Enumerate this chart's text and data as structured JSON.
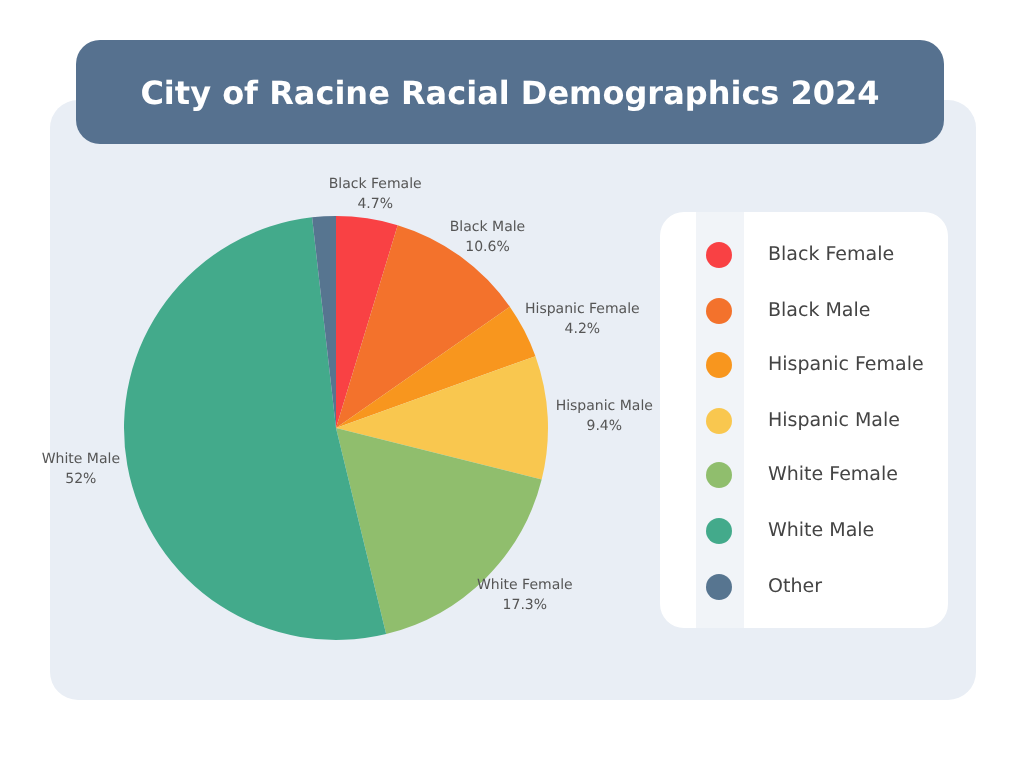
{
  "chart_data": {
    "type": "pie",
    "title": "City of Racine Racial Demographics 2024",
    "categories": [
      "Black Female",
      "Black Male",
      "Hispanic Female",
      "Hispanic Male",
      "White Female",
      "White Male",
      "Other"
    ],
    "values": [
      4.7,
      10.6,
      4.2,
      9.4,
      17.3,
      52,
      1.8
    ],
    "value_labels": [
      "4.7%",
      "10.6%",
      "4.2%",
      "9.4%",
      "17.3%",
      "52%",
      null
    ],
    "colors": [
      "#f94144",
      "#f3722c",
      "#f8961e",
      "#f9c74f",
      "#90be6d",
      "#43aa8b",
      "#577590"
    ],
    "legend": "right"
  }
}
